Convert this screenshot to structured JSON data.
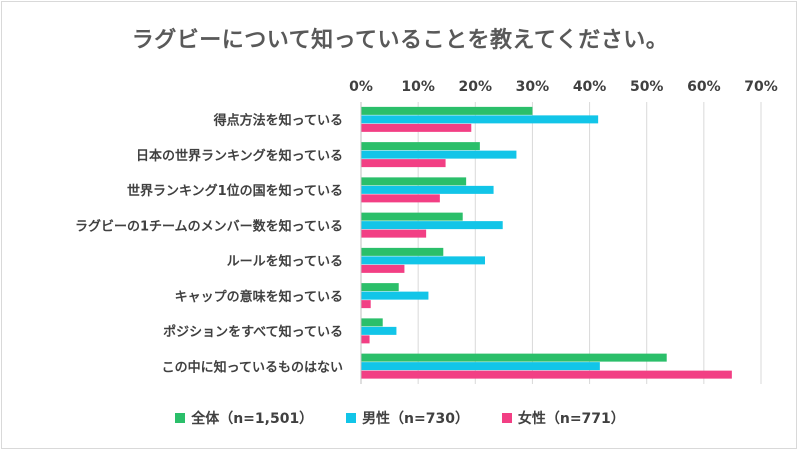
{
  "chart_data": {
    "type": "bar",
    "orientation": "horizontal",
    "title": "ラグビーについて知っていることを教えてください。",
    "xlim": [
      0,
      70
    ],
    "x_ticks": [
      "0%",
      "10%",
      "20%",
      "30%",
      "40%",
      "50%",
      "60%",
      "70%"
    ],
    "x_tick_values": [
      0,
      10,
      20,
      30,
      40,
      50,
      60,
      70
    ],
    "axis_position": "top",
    "grid": true,
    "legend_position": "bottom",
    "categories": [
      "得点方法を知っている",
      "日本の世界ランキングを知っている",
      "世界ランキング1位の国を知っている",
      "ラグビーの1チームのメンバー数を知っている",
      "ルールを知っている",
      "キャップの意味を知っている",
      "ポジションをすべて知っている",
      "この中に知っているものはない"
    ],
    "series": [
      {
        "name": "全体（n=1,501）",
        "color": "#2bbf6a",
        "values": [
          30.0,
          20.8,
          18.4,
          17.8,
          14.4,
          6.6,
          3.8,
          53.5
        ]
      },
      {
        "name": "男性（n=730）",
        "color": "#12c5e8",
        "values": [
          41.5,
          27.2,
          23.2,
          24.8,
          21.7,
          11.8,
          6.2,
          41.8
        ]
      },
      {
        "name": "女性（n=771）",
        "color": "#f23f84",
        "values": [
          19.3,
          14.8,
          13.8,
          11.4,
          7.6,
          1.7,
          1.5,
          64.9
        ]
      }
    ]
  }
}
